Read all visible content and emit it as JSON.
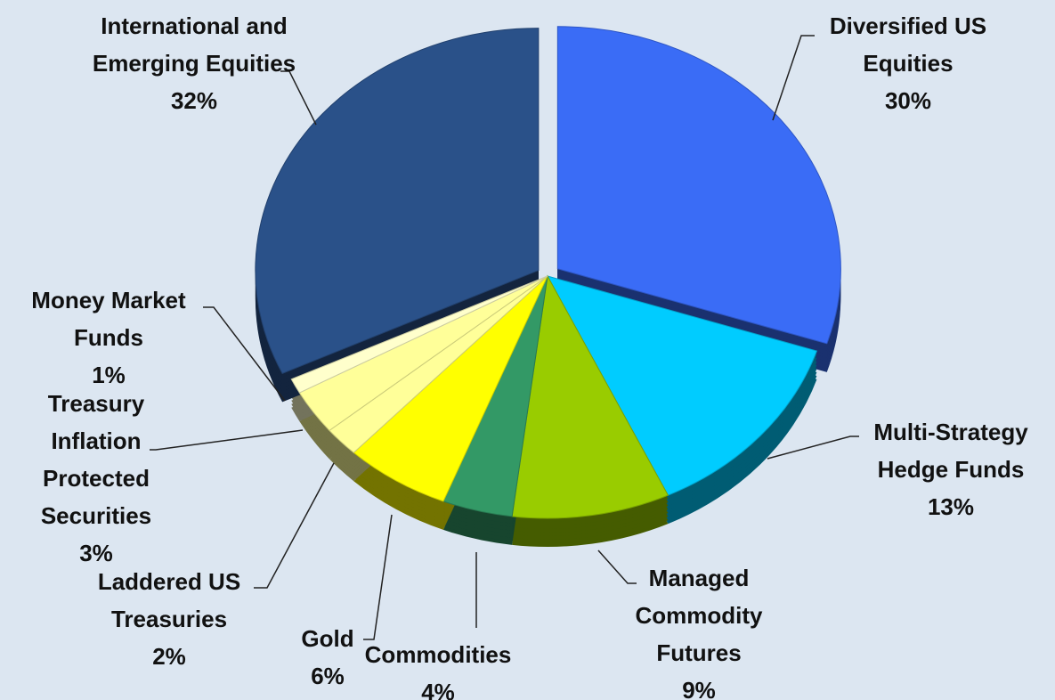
{
  "chart_data": {
    "type": "pie",
    "categories": [
      "Diversified US Equities",
      "Multi-Strategy Hedge Funds",
      "Managed Commodity Futures",
      "Commodities",
      "Gold",
      "Laddered US Treasuries",
      "Treasury Inflation Protected Securities",
      "Money Market Funds",
      "International and Emerging Equities"
    ],
    "values": [
      30,
      13,
      9,
      4,
      6,
      2,
      3,
      1,
      32
    ],
    "value_labels": [
      "30%",
      "13%",
      "9%",
      "4%",
      "6%",
      "2%",
      "3%",
      "1%",
      "32%"
    ],
    "colors": [
      "#3a6cf6",
      "#00ccff",
      "#99cc00",
      "#339966",
      "#ffff00",
      "#ffff99",
      "#ffff99",
      "#ffffcc",
      "#2a5189"
    ]
  }
}
